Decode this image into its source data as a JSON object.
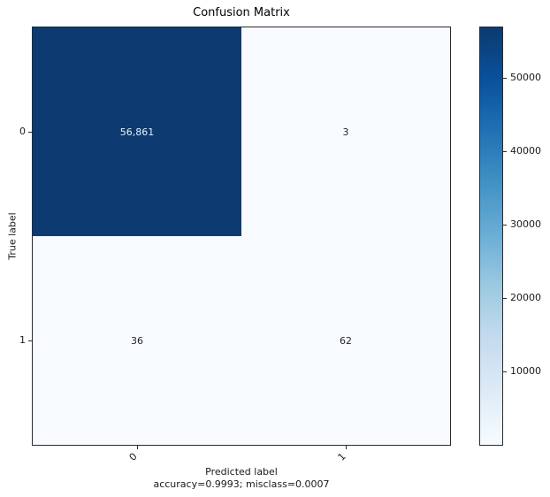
{
  "chart_data": {
    "type": "heatmap",
    "title": "Confusion Matrix",
    "xlabel": "Predicted label",
    "ylabel": "True label",
    "footnote": "accuracy=0.9993; misclass=0.0007",
    "x_tick_labels": [
      "0",
      "1"
    ],
    "y_tick_labels": [
      "0",
      "1"
    ],
    "matrix": [
      [
        56861,
        3
      ],
      [
        36,
        62
      ]
    ],
    "cell_labels": [
      [
        "56,861",
        "3"
      ],
      [
        "36",
        "62"
      ]
    ],
    "colormap": "Blues",
    "vmin": 3,
    "vmax": 56861,
    "colorbar_ticks": [
      10000,
      20000,
      30000,
      40000,
      50000
    ],
    "legend_position": "right-colorbar",
    "grid": false,
    "colors": {
      "cmap_stops": [
        "#f7fbff",
        "#deebf7",
        "#c6dbef",
        "#9ecae1",
        "#6baed6",
        "#4292c6",
        "#2171b5",
        "#08519c",
        "#0d3a70"
      ],
      "dark_cell": "#0d3a70",
      "light_cell": "#f7fbff",
      "text_dark": "#262626",
      "text_light": "#eaeff7",
      "spine": "#2b2b2b"
    }
  }
}
